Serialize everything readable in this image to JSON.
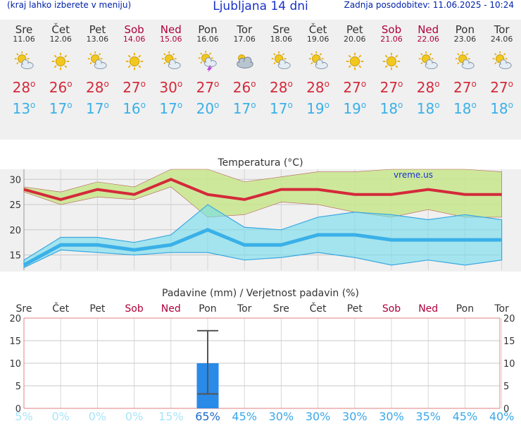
{
  "header": {
    "left_text": "(kraj lahko izberete v meniju)",
    "title": "Ljubljana 14 dni",
    "updated": "Zadnja posodobitev: 11.06.2025 - 10:24"
  },
  "colors": {
    "max_temp": "#d42a3a",
    "min_temp": "#3ab0e8",
    "weekend": "#b0003a",
    "precip_bar": "#2a8ae8",
    "prob_highlight": "#1a6ac8",
    "prob_dim": "#a8e4f8"
  },
  "days": [
    {
      "name": "Sre",
      "date": "11.06",
      "weekend": false,
      "icon": "sun-cloud-icon",
      "max": "28",
      "min": "13"
    },
    {
      "name": "Čet",
      "date": "12.06",
      "weekend": false,
      "icon": "sun-icon",
      "max": "26",
      "min": "17"
    },
    {
      "name": "Pet",
      "date": "13.06",
      "weekend": false,
      "icon": "sun-cloud-icon",
      "max": "28",
      "min": "17"
    },
    {
      "name": "Sob",
      "date": "14.06",
      "weekend": true,
      "icon": "sun-icon",
      "max": "27",
      "min": "16"
    },
    {
      "name": "Ned",
      "date": "15.06",
      "weekend": true,
      "icon": "sun-cloud-icon",
      "max": "30",
      "min": "17"
    },
    {
      "name": "Pon",
      "date": "16.06",
      "weekend": false,
      "icon": "sun-cloud-storm-icon",
      "max": "27",
      "min": "20"
    },
    {
      "name": "Tor",
      "date": "17.06",
      "weekend": false,
      "icon": "cloudy-sun-icon",
      "max": "26",
      "min": "17"
    },
    {
      "name": "Sre",
      "date": "18.06",
      "weekend": false,
      "icon": "sun-cloud-icon",
      "max": "28",
      "min": "17"
    },
    {
      "name": "Čet",
      "date": "19.06",
      "weekend": false,
      "icon": "sun-cloud-icon",
      "max": "28",
      "min": "19"
    },
    {
      "name": "Pet",
      "date": "20.06",
      "weekend": false,
      "icon": "sun-icon",
      "max": "27",
      "min": "19"
    },
    {
      "name": "Sob",
      "date": "21.06",
      "weekend": true,
      "icon": "sun-icon",
      "max": "27",
      "min": "18"
    },
    {
      "name": "Ned",
      "date": "22.06",
      "weekend": true,
      "icon": "sun-cloud-icon",
      "max": "28",
      "min": "18"
    },
    {
      "name": "Pon",
      "date": "23.06",
      "weekend": false,
      "icon": "sun-cloud-icon",
      "max": "27",
      "min": "18"
    },
    {
      "name": "Tor",
      "date": "24.06",
      "weekend": false,
      "icon": "sun-cloud-icon",
      "max": "27",
      "min": "18"
    }
  ],
  "chart_data": [
    {
      "type": "line",
      "title": "Temperatura (°C)",
      "watermark": "vreme.us",
      "x": [
        "Sre",
        "Čet",
        "Pet",
        "Sob",
        "Ned",
        "Pon",
        "Tor",
        "Sre",
        "Čet",
        "Pet",
        "Sob",
        "Ned",
        "Pon",
        "Tor"
      ],
      "ylim": [
        12,
        32
      ],
      "yticks": [
        15,
        20,
        25,
        30
      ],
      "series": [
        {
          "values": [
            28,
            26,
            28,
            27,
            30,
            27,
            26,
            28,
            28,
            27,
            27,
            28,
            27,
            27
          ],
          "band_upper": [
            28.5,
            27.5,
            29.5,
            28.5,
            32,
            32,
            29.5,
            30.5,
            31.5,
            31.5,
            32,
            32,
            32,
            31.5
          ],
          "band_lower": [
            27.5,
            25,
            26.5,
            26,
            28.5,
            22.5,
            23,
            25.5,
            25,
            23.5,
            22.5,
            24,
            22.5,
            22.5
          ]
        },
        {
          "values": [
            13,
            17,
            17,
            16,
            17,
            20,
            17,
            17,
            19,
            19,
            18,
            18,
            18,
            18
          ],
          "band_upper": [
            14,
            18.5,
            18.5,
            17.5,
            19,
            25,
            20.5,
            20,
            22.5,
            23.5,
            23,
            22,
            23,
            22
          ],
          "band_lower": [
            12.5,
            16,
            15.5,
            15,
            15.5,
            15.5,
            14,
            14.5,
            15.5,
            14.5,
            13,
            14,
            13,
            14
          ]
        }
      ]
    },
    {
      "type": "bar",
      "title": "Padavine (mm) / Verjetnost padavin (%)",
      "categories": [
        "Sre",
        "Čet",
        "Pet",
        "Sob",
        "Ned",
        "Pon",
        "Tor",
        "Sre",
        "Čet",
        "Pet",
        "Sob",
        "Ned",
        "Pon",
        "Tor"
      ],
      "weekend": [
        false,
        false,
        false,
        true,
        true,
        false,
        false,
        false,
        false,
        false,
        true,
        true,
        false,
        false
      ],
      "values": [
        0,
        0,
        0,
        0,
        0,
        10,
        0,
        0,
        0,
        0,
        0,
        0,
        0,
        0
      ],
      "error_high": [
        null,
        null,
        null,
        null,
        null,
        17.2,
        null,
        null,
        null,
        null,
        null,
        null,
        null,
        null
      ],
      "error_low": [
        null,
        null,
        null,
        null,
        null,
        3.2,
        null,
        null,
        null,
        null,
        null,
        null,
        null,
        null
      ],
      "ylim": [
        0,
        20
      ],
      "yticks": [
        0,
        5,
        10,
        15,
        20
      ],
      "probabilities": [
        "5%",
        "0%",
        "0%",
        "0%",
        "15%",
        "65%",
        "45%",
        "30%",
        "30%",
        "30%",
        "30%",
        "35%",
        "45%",
        "40%"
      ]
    }
  ]
}
